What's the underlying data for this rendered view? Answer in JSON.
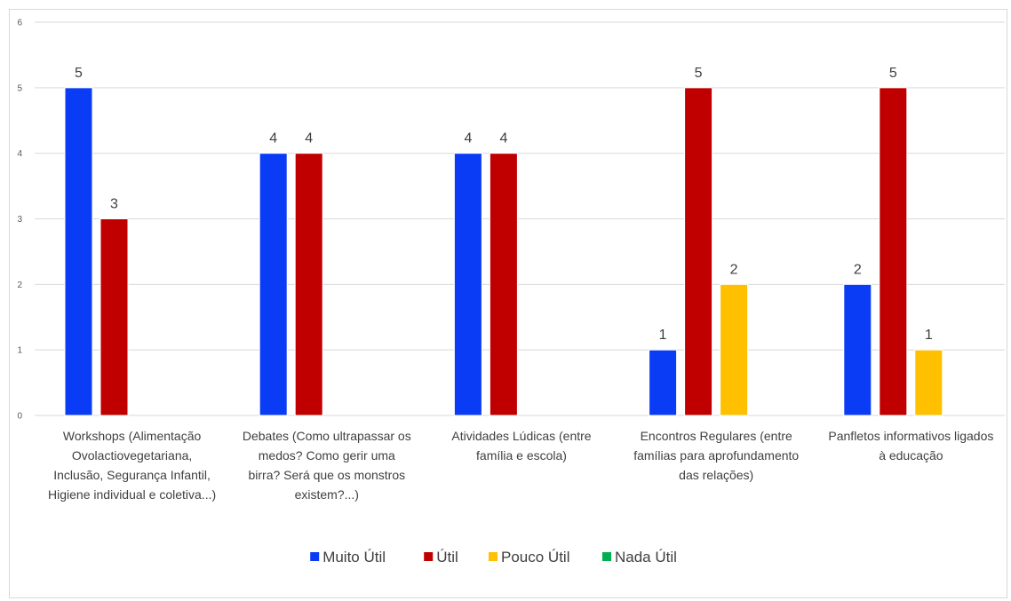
{
  "chart_data": {
    "type": "bar",
    "title": "",
    "xlabel": "",
    "ylabel": "",
    "ylim": [
      0,
      6
    ],
    "yticks": [
      0,
      1,
      2,
      3,
      4,
      5,
      6
    ],
    "grid": true,
    "legend_position": "bottom",
    "categories": [
      [
        "Workshops  (Alimentação",
        "Ovolactiovegetariana,",
        "Inclusão, Segurança Infantil,",
        "Higiene individual e coletiva...)"
      ],
      [
        "Debates (Como ultrapassar os",
        "medos? Como gerir uma",
        "birra? Será que os monstros",
        "existem?...)"
      ],
      [
        "Atividades Lúdicas (entre",
        "família e escola)"
      ],
      [
        "Encontros Regulares (entre",
        "famílias para aprofundamento",
        "das relações)"
      ],
      [
        "Panfletos informativos ligados",
        "à educação"
      ]
    ],
    "series": [
      {
        "name": "Muito Útil",
        "color": "#0b3cf5",
        "values": [
          5,
          4,
          4,
          1,
          2
        ]
      },
      {
        "name": "Útil",
        "color": "#c00000",
        "values": [
          3,
          4,
          4,
          5,
          5
        ]
      },
      {
        "name": "Pouco Útil",
        "color": "#ffc000",
        "values": [
          null,
          null,
          null,
          2,
          1
        ]
      },
      {
        "name": "Nada Útil",
        "color": "#00b050",
        "values": [
          null,
          null,
          null,
          null,
          null
        ]
      }
    ]
  }
}
